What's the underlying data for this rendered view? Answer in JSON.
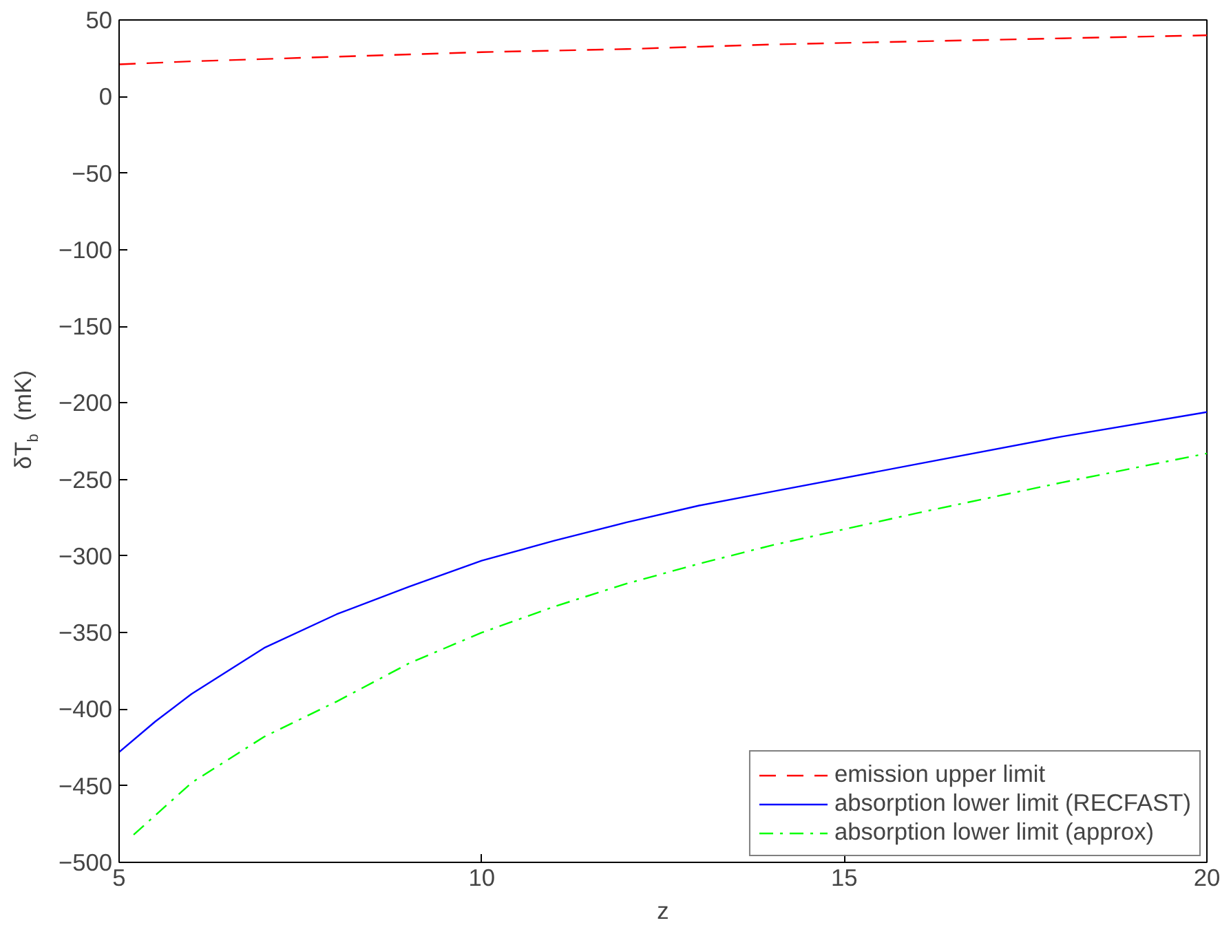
{
  "chart_data": {
    "type": "line",
    "xlabel": "z",
    "ylabel": "δT$_{b}$ (mK)",
    "xlim": [
      5,
      20
    ],
    "ylim": [
      -500,
      50
    ],
    "xticks": [
      5,
      10,
      15,
      20
    ],
    "yticks": [
      -500,
      -450,
      -400,
      -350,
      -300,
      -250,
      -200,
      -150,
      -100,
      -50,
      0,
      50
    ],
    "grid": false,
    "legend": "bottom right",
    "series": [
      {
        "name": "emission upper limit",
        "color": "#ff0000",
        "line_style": "dashed",
        "x": [
          5,
          6,
          8,
          10,
          12,
          14,
          16,
          18,
          20
        ],
        "values": [
          21,
          23,
          26,
          29,
          31,
          34,
          36,
          38,
          40
        ]
      },
      {
        "name": "absorption lower limit (RECFAST)",
        "color": "#0000ff",
        "line_style": "solid",
        "x": [
          5,
          5.5,
          6,
          7,
          8,
          9,
          10,
          11,
          12,
          13,
          14,
          16,
          18,
          20
        ],
        "values": [
          -428,
          -408,
          -390,
          -360,
          -338,
          -320,
          -303,
          -290,
          -278,
          -267,
          -258,
          -240,
          -222,
          -206
        ]
      },
      {
        "name": "absorption lower limit (approx)",
        "color": "#00ff00",
        "line_style": "dashdot",
        "x": [
          5.2,
          6,
          7,
          8,
          9,
          10,
          11,
          12,
          13,
          14,
          16,
          18,
          20
        ],
        "values": [
          -482,
          -448,
          -418,
          -395,
          -370,
          -350,
          -333,
          -318,
          -305,
          -293,
          -272,
          -252,
          -233
        ]
      }
    ]
  }
}
